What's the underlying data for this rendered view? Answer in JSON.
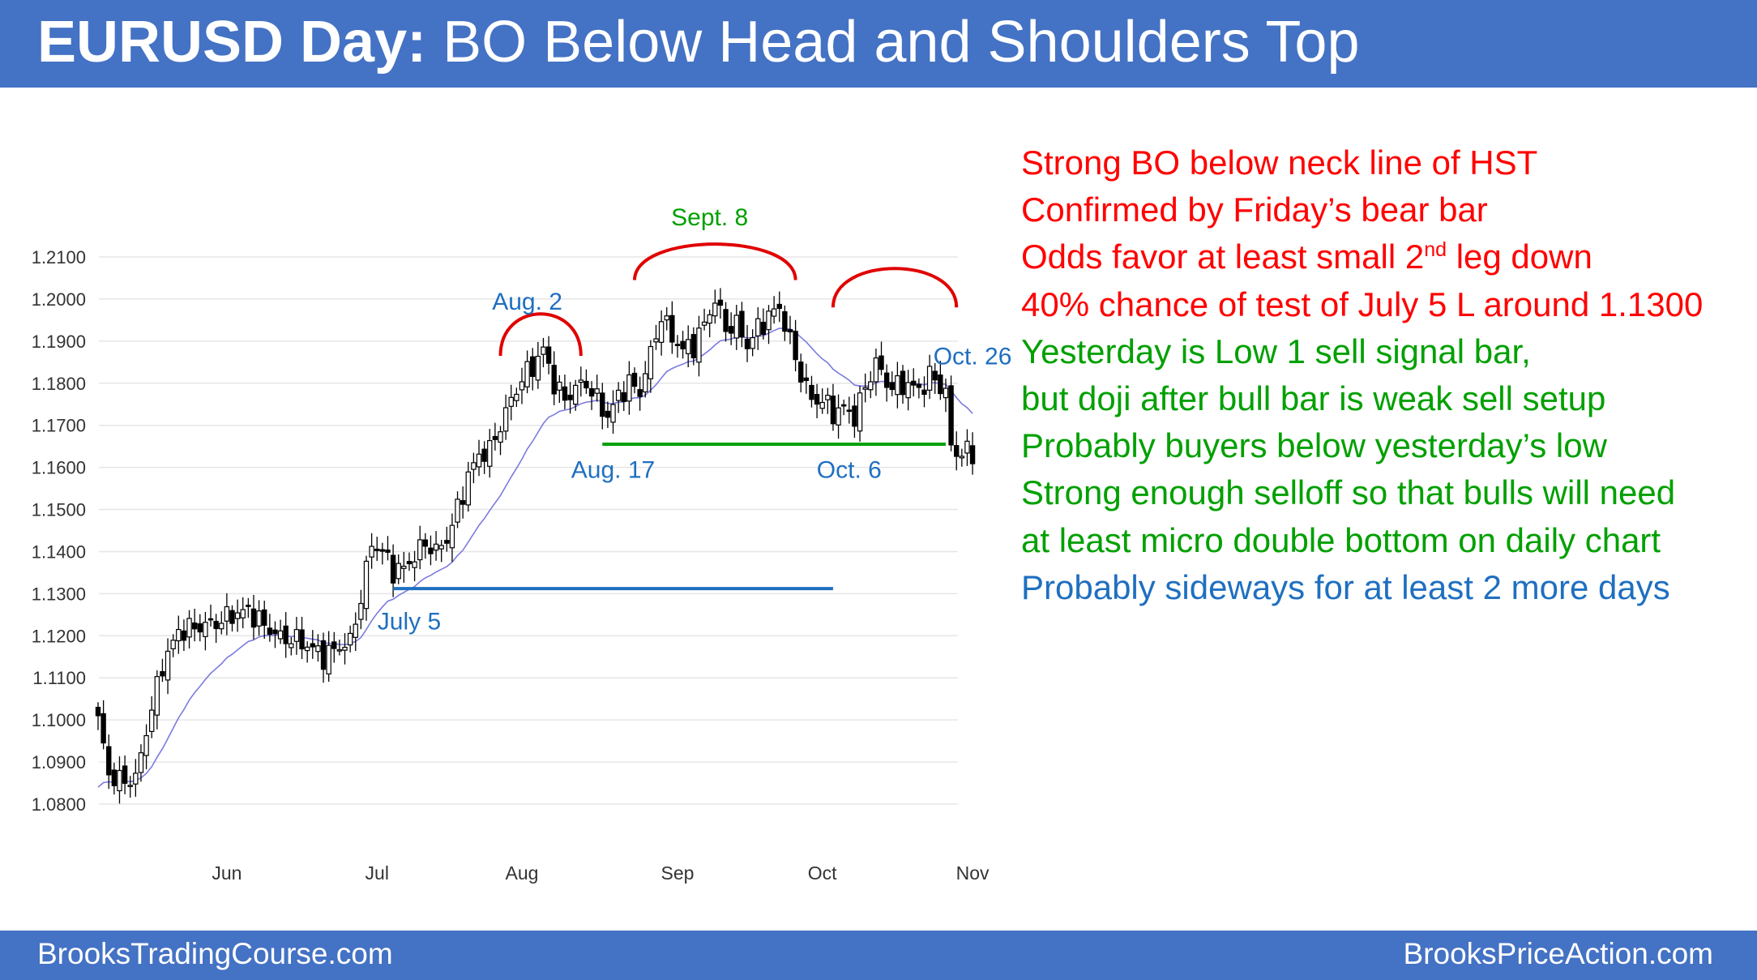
{
  "header": {
    "title_bold": "EURUSD Day:",
    "title_rest": " BO Below Head and Shoulders Top"
  },
  "footer": {
    "left": "BrooksTradingCourse.com",
    "right": "BrooksPriceAction.com"
  },
  "colors": {
    "banner": "#4472C4",
    "red": "#FF0000",
    "green": "#00A000",
    "blue": "#1F6FC0",
    "ema": "#7B7BE0"
  },
  "notes": [
    {
      "text": "Strong BO below neck line of HST",
      "color": "red"
    },
    {
      "text": "Confirmed by Friday’s bear bar",
      "color": "red"
    },
    {
      "text": "Odds favor at least small 2",
      "sup": "nd",
      "tail": " leg down",
      "color": "red"
    },
    {
      "text": "40% chance of test of July 5 L around 1.1300",
      "color": "red"
    },
    {
      "text": "Yesterday is Low 1 sell signal bar,",
      "color": "green"
    },
    {
      "text": "but doji after bull bar is weak sell setup",
      "color": "green"
    },
    {
      "text": "Probably buyers below yesterday’s low",
      "color": "green"
    },
    {
      "text": "Strong enough selloff so that bulls will need",
      "color": "green"
    },
    {
      "text": "at least micro double bottom on daily chart",
      "color": "green"
    },
    {
      "text": "Probably sideways for at least 2 more days",
      "color": "blue"
    }
  ],
  "chart_data": {
    "type": "candlestick",
    "y_ticks": [
      "1.2100",
      "1.2000",
      "1.1900",
      "1.1800",
      "1.1700",
      "1.1600",
      "1.1500",
      "1.1400",
      "1.1300",
      "1.1200",
      "1.1100",
      "1.1000",
      "1.0900",
      "1.0800"
    ],
    "ylim": [
      1.08,
      1.21
    ],
    "x_months": [
      {
        "label": "Jun",
        "index": 24
      },
      {
        "label": "Jul",
        "index": 52
      },
      {
        "label": "Aug",
        "index": 79
      },
      {
        "label": "Sep",
        "index": 108
      },
      {
        "label": "Oct",
        "index": 135
      },
      {
        "label": "Nov",
        "index": 163
      }
    ],
    "annotations": [
      {
        "text": "Sept. 8",
        "color": "green",
        "index": 114,
        "price": 1.2175
      },
      {
        "text": "Aug. 2",
        "color": "blue",
        "index": 80,
        "price": 1.1975
      },
      {
        "text": "Oct. 26",
        "color": "blue",
        "index": 163,
        "price": 1.1845
      },
      {
        "text": "Aug. 17",
        "color": "blue",
        "index": 96,
        "price": 1.1575
      },
      {
        "text": "Oct. 6",
        "color": "blue",
        "index": 140,
        "price": 1.1575
      },
      {
        "text": "July 5",
        "color": "blue",
        "index": 58,
        "price": 1.1215
      }
    ],
    "lines": [
      {
        "name": "neckline",
        "color": "green",
        "from_index": 94,
        "to_index": 158,
        "price": 1.1655
      },
      {
        "name": "july-5-low",
        "color": "blue",
        "from_index": 55,
        "to_index": 137,
        "price": 1.1312
      }
    ],
    "arcs": [
      {
        "name": "left-shoulder",
        "from_index": 75,
        "to_index": 90,
        "base_price": 1.1865,
        "peak_price": 1.1935
      },
      {
        "name": "head",
        "from_index": 100,
        "to_index": 130,
        "base_price": 1.2045,
        "peak_price": 1.2105
      },
      {
        "name": "right-shoulder",
        "from_index": 137,
        "to_index": 160,
        "base_price": 1.198,
        "peak_price": 1.2045
      }
    ],
    "anchors": [
      [
        0,
        1.101
      ],
      [
        2,
        1.087
      ],
      [
        4,
        1.0855
      ],
      [
        7,
        1.086
      ],
      [
        9,
        1.0975
      ],
      [
        12,
        1.113
      ],
      [
        15,
        1.121
      ],
      [
        18,
        1.122
      ],
      [
        22,
        1.123
      ],
      [
        25,
        1.125
      ],
      [
        28,
        1.126
      ],
      [
        31,
        1.1225
      ],
      [
        34,
        1.1195
      ],
      [
        37,
        1.119
      ],
      [
        40,
        1.117
      ],
      [
        42,
        1.115
      ],
      [
        45,
        1.1175
      ],
      [
        47,
        1.1185
      ],
      [
        49,
        1.129
      ],
      [
        51,
        1.142
      ],
      [
        53,
        1.14
      ],
      [
        55,
        1.1355
      ],
      [
        57,
        1.136
      ],
      [
        59,
        1.139
      ],
      [
        61,
        1.142
      ],
      [
        63,
        1.14
      ],
      [
        65,
        1.143
      ],
      [
        67,
        1.15
      ],
      [
        69,
        1.158
      ],
      [
        71,
        1.163
      ],
      [
        73,
        1.164
      ],
      [
        75,
        1.17
      ],
      [
        77,
        1.176
      ],
      [
        79,
        1.181
      ],
      [
        81,
        1.184
      ],
      [
        83,
        1.188
      ],
      [
        85,
        1.18
      ],
      [
        87,
        1.176
      ],
      [
        89,
        1.179
      ],
      [
        91,
        1.18
      ],
      [
        93,
        1.176
      ],
      [
        95,
        1.172
      ],
      [
        97,
        1.177
      ],
      [
        99,
        1.18
      ],
      [
        101,
        1.178
      ],
      [
        103,
        1.187
      ],
      [
        105,
        1.196
      ],
      [
        107,
        1.191
      ],
      [
        109,
        1.188
      ],
      [
        111,
        1.189
      ],
      [
        113,
        1.194
      ],
      [
        115,
        1.2
      ],
      [
        117,
        1.193
      ],
      [
        119,
        1.194
      ],
      [
        121,
        1.189
      ],
      [
        123,
        1.193
      ],
      [
        125,
        1.196
      ],
      [
        127,
        1.198
      ],
      [
        129,
        1.19
      ],
      [
        131,
        1.182
      ],
      [
        133,
        1.176
      ],
      [
        135,
        1.176
      ],
      [
        137,
        1.173
      ],
      [
        139,
        1.174
      ],
      [
        141,
        1.172
      ],
      [
        143,
        1.179
      ],
      [
        145,
        1.185
      ],
      [
        147,
        1.18
      ],
      [
        149,
        1.179
      ],
      [
        151,
        1.18
      ],
      [
        153,
        1.178
      ],
      [
        155,
        1.182
      ],
      [
        157,
        1.179
      ],
      [
        158,
        1.1785
      ],
      [
        159,
        1.164
      ],
      [
        160,
        1.1635
      ],
      [
        161,
        1.164
      ],
      [
        162,
        1.1635
      ],
      [
        163,
        1.1625
      ]
    ]
  }
}
